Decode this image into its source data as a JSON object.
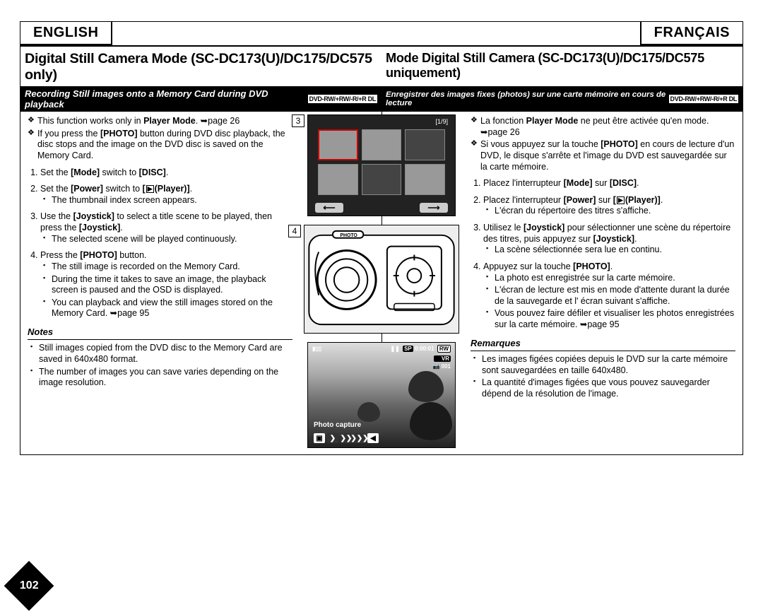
{
  "lang": {
    "en": "ENGLISH",
    "fr": "FRANÇAIS"
  },
  "heading": {
    "en": "Digital Still Camera Mode (SC-DC173(U)/DC175/DC575 only)",
    "fr": "Mode Digital Still Camera (SC-DC173(U)/DC175/DC575 uniquement)"
  },
  "subhead": {
    "en": "Recording Still images onto a Memory Card during DVD playback",
    "fr": "Enregistrer des images fixes (photos) sur une carte mémoire en cours de lecture",
    "disc": "DVD-RW/+RW/-R/+R DL"
  },
  "intro": {
    "en": [
      "This function works only in <b>Player Mode</b>. ➥page 26",
      "If you press the <b>[PHOTO]</b> button during DVD disc playback, the disc stops and the image on the DVD disc is saved on the Memory Card."
    ],
    "fr": [
      "La fonction <b>Player Mode</b> ne peut être activée qu'en mode. ➥page 26",
      "Si vous appuyez sur la touche <b>[PHOTO]</b> en cours de lecture d'un DVD, le disque s'arrête et l'image du DVD est sauvegardée sur la carte mémoire."
    ]
  },
  "steps": {
    "en": [
      {
        "t": "Set the <b>[Mode]</b> switch to <b>[DISC]</b>."
      },
      {
        "t": "Set the <b>[Power]</b> switch to <b>[<span class='playericon'>▶</span>(Player)]</b>.",
        "sub": [
          "The thumbnail index screen appears."
        ]
      },
      {
        "t": "Use the <b>[Joystick]</b> to select a title scene to be played, then press the <b>[Joystick]</b>.",
        "sub": [
          "The selected scene will be played continuously."
        ]
      },
      {
        "t": "Press the <b>[PHOTO]</b> button.",
        "sub": [
          "The still image is recorded on the Memory Card.",
          "During the time it takes to save an image, the playback screen is paused and the OSD is displayed.",
          "You can playback and view the still images stored on the Memory Card. ➥page 95"
        ]
      }
    ],
    "fr": [
      {
        "t": "Placez l'interrupteur <b>[Mode]</b> sur <b>[DISC]</b>."
      },
      {
        "t": "Placez l'interrupteur <b>[Power]</b> sur <b>[<span class='playericon'>▶</span>(Player)]</b>.",
        "sub": [
          "L'écran du répertoire des titres s'affiche."
        ]
      },
      {
        "t": "Utilisez le <b>[Joystick]</b> pour sélectionner une scène du répertoire des titres, puis appuyez sur <b>[Joystick]</b>.",
        "sub": [
          "La scène sélectionnée sera lue en continu."
        ]
      },
      {
        "t": "Appuyez sur la touche <b>[PHOTO]</b>.",
        "sub": [
          "La photo est enregistrée sur la carte mémoire.",
          "L'écran de lecture est mis en mode d'attente durant la durée de la sauvegarde et l' écran suivant s'affiche.",
          "Vous pouvez faire défiler et visualiser les photos enregistrées sur la carte mémoire. ➥page 95"
        ]
      }
    ]
  },
  "notes": {
    "en_head": "Notes",
    "fr_head": "Remarques",
    "en": [
      "Still images copied from the DVD disc to the Memory Card are saved in 640x480 format.",
      "The number of images you can save varies depending on the image resolution."
    ],
    "fr": [
      "Les images figées copiées depuis le DVD sur la carte mémoire sont sauvegardées en taille 640x480.",
      "La quantité d'images figées que vous pouvez sauvegarder dépend de la résolution de l'image."
    ]
  },
  "fig": {
    "label3": "3",
    "label4": "4",
    "counter": "[1/9]",
    "sp": "SP",
    "time": "0:00:01",
    "rw": "RW",
    "vr": "VR",
    "num": "001",
    "caption": "Photo capture",
    "left": "⟵",
    "right": "⟶",
    "pause": "❚❚"
  },
  "page_number": "102"
}
